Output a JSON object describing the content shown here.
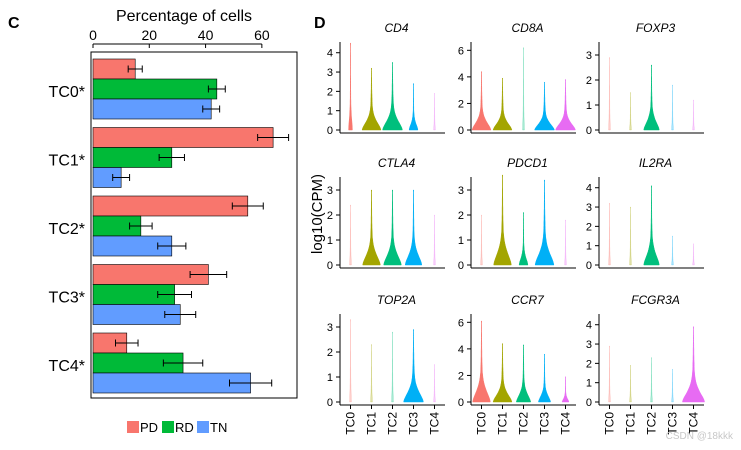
{
  "panel_c": {
    "label": "C",
    "title": "Percentage of cells",
    "legend": [
      {
        "name": "PD",
        "color": "#F8766D"
      },
      {
        "name": "RD",
        "color": "#00BA38"
      },
      {
        "name": "TN",
        "color": "#619CFF"
      }
    ]
  },
  "panel_d": {
    "label": "D",
    "ylabel": "log10(CPM)",
    "group_colors": [
      "#F8766D",
      "#A3A500",
      "#00BF7D",
      "#00B0F6",
      "#E76BF3"
    ]
  },
  "watermark": "CSDN @18kkk",
  "chart_data": [
    {
      "type": "bar",
      "orientation": "horizontal",
      "title": "Percentage of cells",
      "categories": [
        "TC0*",
        "TC1*",
        "TC2*",
        "TC3*",
        "TC4*"
      ],
      "series": [
        {
          "name": "PD",
          "values": [
            15,
            64,
            55,
            41,
            12
          ],
          "errors": [
            2.5,
            5.5,
            5.5,
            6.5,
            4
          ]
        },
        {
          "name": "RD",
          "values": [
            44,
            28,
            17,
            29,
            32
          ],
          "errors": [
            3,
            4.5,
            4,
            6,
            7
          ]
        },
        {
          "name": "TN",
          "values": [
            42,
            10,
            28,
            31,
            56
          ],
          "errors": [
            3,
            3,
            5,
            5.5,
            7.5
          ]
        }
      ],
      "xlim": [
        0,
        70
      ],
      "xticks": [
        0,
        20,
        40,
        60
      ],
      "axis_position": "top",
      "legend_position": "bottom"
    },
    {
      "type": "violin",
      "ylabel": "log10(CPM)",
      "groups": [
        "TC0",
        "TC1",
        "TC2",
        "TC3",
        "TC4"
      ],
      "panels": [
        {
          "gene": "CD4",
          "yticks": [
            0,
            1,
            2,
            3,
            4
          ],
          "ymax": [
            4.5,
            3.2,
            3.5,
            2.4,
            1.9
          ],
          "width": [
            0.15,
            0.85,
            0.9,
            0.4,
            0.05
          ]
        },
        {
          "gene": "CD8A",
          "yticks": [
            0,
            2,
            4,
            6
          ],
          "ymax": [
            4.4,
            3.9,
            6.2,
            3.6,
            3.8
          ],
          "width": [
            0.85,
            0.85,
            0.05,
            0.9,
            0.9
          ]
        },
        {
          "gene": "FOXP3",
          "yticks": [
            0,
            1,
            2,
            3
          ],
          "ymax": [
            2.9,
            1.5,
            2.6,
            1.8,
            1.2
          ],
          "width": [
            0.05,
            0.05,
            0.7,
            0.05,
            0.05
          ]
        },
        {
          "gene": "CTLA4",
          "yticks": [
            0,
            1,
            2,
            3
          ],
          "ymax": [
            2.4,
            3.0,
            3.0,
            3.0,
            2.0
          ],
          "width": [
            0.05,
            0.8,
            0.8,
            0.75,
            0.05
          ]
        },
        {
          "gene": "PDCD1",
          "yticks": [
            0,
            1,
            2,
            3
          ],
          "ymax": [
            2.0,
            3.6,
            2.1,
            3.4,
            1.8
          ],
          "width": [
            0.05,
            0.8,
            0.4,
            0.85,
            0.05
          ]
        },
        {
          "gene": "IL2RA",
          "yticks": [
            0,
            1,
            2,
            3,
            4
          ],
          "ymax": [
            3.2,
            3.0,
            4.1,
            1.5,
            1.1
          ],
          "width": [
            0.05,
            0.05,
            0.7,
            0.05,
            0.05
          ]
        },
        {
          "gene": "TOP2A",
          "yticks": [
            0,
            1,
            2,
            3
          ],
          "ymax": [
            3.3,
            2.3,
            2.8,
            2.9,
            1.5
          ],
          "width": [
            0.05,
            0.05,
            0.05,
            0.9,
            0.05
          ]
        },
        {
          "gene": "CCR7",
          "yticks": [
            0,
            2,
            4,
            6
          ],
          "ymax": [
            6.1,
            4.4,
            4.3,
            3.6,
            1.9
          ],
          "width": [
            0.8,
            0.85,
            0.65,
            0.55,
            0.3
          ]
        },
        {
          "gene": "FCGR3A",
          "yticks": [
            0,
            1,
            2,
            3,
            4
          ],
          "ymax": [
            2.9,
            1.9,
            2.3,
            1.7,
            3.9
          ],
          "width": [
            0.05,
            0.05,
            0.05,
            0.05,
            1.0
          ]
        }
      ]
    }
  ]
}
